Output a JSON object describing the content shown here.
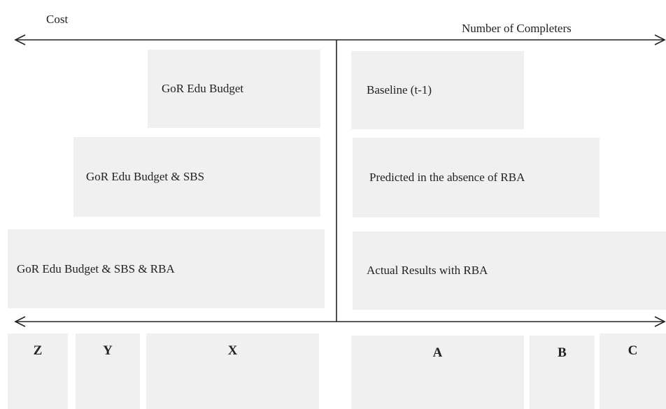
{
  "axis_labels": {
    "left": "Cost",
    "right": "Number of Completers"
  },
  "left_boxes": [
    "GoR Edu Budget",
    "GoR Edu Budget & SBS",
    "GoR Edu Budget & SBS & RBA"
  ],
  "right_boxes": [
    "Baseline (t-1)",
    "Predicted in the absence of RBA",
    "Actual Results with RBA"
  ],
  "bottom_boxes": [
    "Z",
    "Y",
    "X",
    "A",
    "B",
    "C"
  ]
}
